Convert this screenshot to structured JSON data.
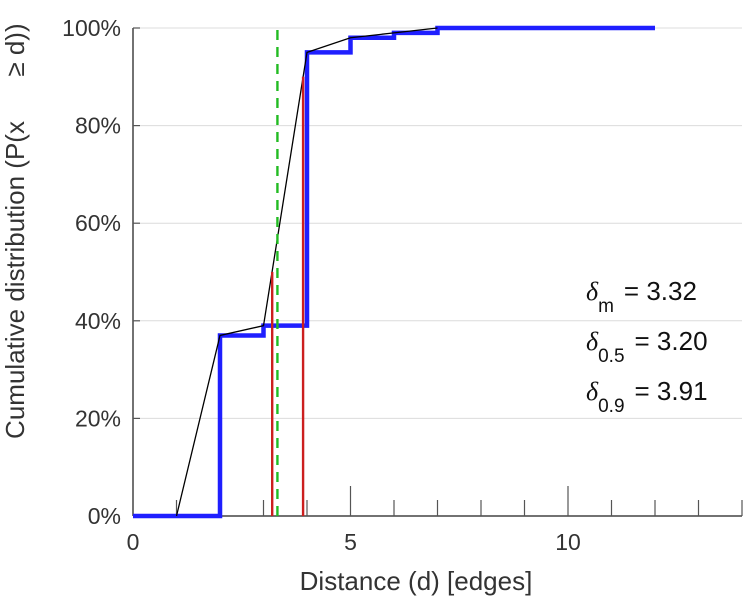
{
  "chart_data": {
    "type": "line",
    "xlabel": "Distance (d) [edges]",
    "ylabel_line1": "Cumulative distribution (P(x",
    "ylabel_line2": "≥ d))",
    "xlim": [
      0,
      14
    ],
    "ylim": [
      0,
      1
    ],
    "x_ticks": [
      {
        "value": 0,
        "label": "0"
      },
      {
        "value": 5,
        "label": "5"
      },
      {
        "value": 10,
        "label": "10"
      }
    ],
    "x_minor_ticks": [
      0,
      1,
      2,
      3,
      4,
      5,
      6,
      7,
      8,
      9,
      10,
      11,
      12,
      13,
      14
    ],
    "y_ticks": [
      {
        "value": 0,
        "label": "0%"
      },
      {
        "value": 0.2,
        "label": "20%"
      },
      {
        "value": 0.4,
        "label": "40%"
      },
      {
        "value": 0.6,
        "label": "60%"
      },
      {
        "value": 0.8,
        "label": "80%"
      },
      {
        "value": 1.0,
        "label": "100%"
      }
    ],
    "grid": "horizontal",
    "series": [
      {
        "kind": "step",
        "color": "#1f1fff",
        "x": [
          0,
          2,
          3,
          4,
          5,
          6,
          7,
          12
        ],
        "y": [
          0,
          0.37,
          0.39,
          0.95,
          0.98,
          0.99,
          1.0,
          1.0
        ]
      },
      {
        "kind": "polyline",
        "color": "#000000",
        "x": [
          1,
          2,
          3,
          4,
          5,
          6,
          7
        ],
        "y": [
          0,
          0.37,
          0.39,
          0.95,
          0.98,
          0.99,
          1.0
        ]
      }
    ],
    "markers": [
      {
        "kind": "vline",
        "style": "dashed",
        "color": "#22bb22",
        "x": 3.32,
        "y_top": 1.0
      },
      {
        "kind": "vline",
        "style": "solid",
        "color": "#cc1f1f",
        "x": 3.2,
        "y_top": 0.5
      },
      {
        "kind": "vline",
        "style": "solid",
        "color": "#cc1f1f",
        "x": 3.91,
        "y_top": 0.9
      }
    ],
    "annotations": [
      {
        "symbol": "δ",
        "subscript": "m",
        "text": "= 3.32"
      },
      {
        "symbol": "δ",
        "subscript": "0.5",
        "text": "= 3.20"
      },
      {
        "symbol": "δ",
        "subscript": "0.9",
        "text": "= 3.91"
      }
    ]
  }
}
